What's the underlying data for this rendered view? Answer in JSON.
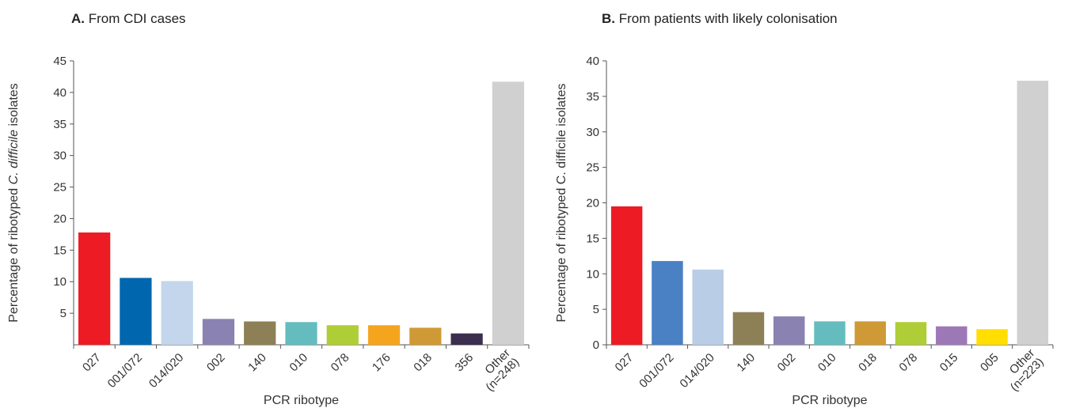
{
  "chart_data": [
    {
      "type": "bar",
      "panel_letter": "A.",
      "title": "From CDI cases",
      "xlabel": "PCR ribotype",
      "ylabel_prefix": "Percentage of ribotyped ",
      "ylabel_italic": "C. difficile",
      "ylabel_suffix": " isolates",
      "ylim": [
        0,
        45
      ],
      "yticks": [
        "5",
        "10",
        "15",
        "20",
        "25",
        "30",
        "35",
        "40",
        "45"
      ],
      "categories": [
        "027",
        "001/072",
        "014/020",
        "002",
        "140",
        "010",
        "078",
        "176",
        "018",
        "356",
        "Other\n(n=248)"
      ],
      "values": [
        17.8,
        10.6,
        10.1,
        4.1,
        3.7,
        3.6,
        3.1,
        3.1,
        2.7,
        1.8,
        41.7
      ],
      "colors": [
        "#ed1c24",
        "#0066ae",
        "#c3d6eb",
        "#8a82b1",
        "#8d8057",
        "#65bcbf",
        "#afcd36",
        "#f5a51d",
        "#cf9a35",
        "#3b2e4e",
        "#d0d0d0"
      ]
    },
    {
      "type": "bar",
      "panel_letter": "B.",
      "title": "From patients with likely colonisation",
      "xlabel": "PCR ribotype",
      "ylabel_prefix": "Percentage of ribotyped C. difficile isolates",
      "ylabel_italic": "",
      "ylabel_suffix": "",
      "ylim": [
        0,
        40
      ],
      "yticks": [
        "0",
        "5",
        "10",
        "15",
        "20",
        "25",
        "30",
        "35",
        "40"
      ],
      "categories": [
        "027",
        "001/072",
        "014/020",
        "140",
        "002",
        "010",
        "018",
        "078",
        "015",
        "005",
        "Other\n(n=223)"
      ],
      "values": [
        19.5,
        11.8,
        10.6,
        4.6,
        4.0,
        3.3,
        3.3,
        3.2,
        2.6,
        2.2,
        37.2
      ],
      "colors": [
        "#ed1c24",
        "#4a80c4",
        "#bacde6",
        "#8d8057",
        "#8a82b1",
        "#65bcbf",
        "#cf9a35",
        "#afcd36",
        "#9d78b7",
        "#ffde00",
        "#d0d0d0"
      ]
    }
  ]
}
